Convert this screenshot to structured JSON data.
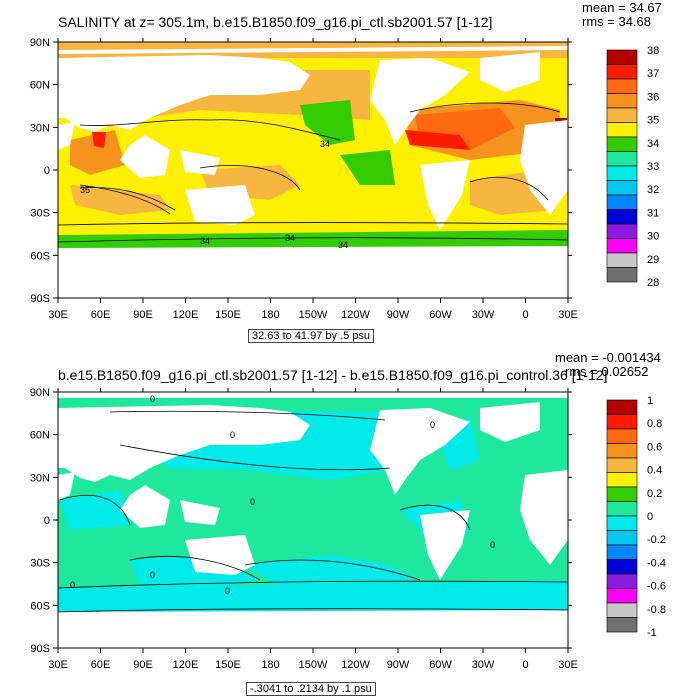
{
  "top": {
    "title": "SALINITY at z= 305.1m, b.e15.B1850.f09_g16.pi_ctl.sb2001.57 [1-12]",
    "mean": "mean = 34.67",
    "rms": "rms = 34.68",
    "contour_info": "32.63 to 41.97 by .5 psu"
  },
  "bottom": {
    "title": "b.e15.B1850.f09_g16.pi_ctl.sb2001.57 [1-12] - b.e15.B1850.f09_g16.pi_control.36 [1-12]",
    "mean": "mean = -0.001434",
    "rms": "rms = 0.02652",
    "contour_info": "-.3041 to .2134 by .1 psu"
  },
  "chart_data": [
    {
      "type": "heatmap",
      "title": "SALINITY at z= 305.1m, b.e15.B1850.f09_g16.pi_ctl.sb2001.57 [1-12]",
      "x_ticks": [
        "30E",
        "60E",
        "90E",
        "120E",
        "150E",
        "180",
        "150W",
        "120W",
        "90W",
        "60W",
        "30W",
        "0",
        "30E"
      ],
      "y_ticks": [
        "90N",
        "60N",
        "30N",
        "0",
        "30S",
        "60S",
        "90S"
      ],
      "x_range": [
        30,
        390
      ],
      "y_range": [
        -90,
        90
      ],
      "colorbar_labels": [
        "38",
        "37",
        "36",
        "35",
        "34",
        "33",
        "32",
        "31",
        "30",
        "29",
        "28"
      ],
      "colorbar_colors": [
        "#b40000",
        "#ff1a00",
        "#ff6a10",
        "#f6921e",
        "#f6b640",
        "#ffef00",
        "#33cc00",
        "#1ee89e",
        "#00eaea",
        "#00c7f0",
        "#0086ff",
        "#0000d8",
        "#8a1ce0",
        "#ff00ff",
        "#c8c8c8",
        "#707070"
      ],
      "contour_labels": [
        "34",
        "35",
        "34",
        "34",
        "34"
      ],
      "contour_info": "32.63 to 41.97 by .5 psu",
      "mean": 34.67,
      "rms": 34.68
    },
    {
      "type": "heatmap",
      "title": "b.e15.B1850.f09_g16.pi_ctl.sb2001.57 [1-12] - b.e15.B1850.f09_g16.pi_control.36 [1-12]",
      "x_ticks": [
        "30E",
        "60E",
        "90E",
        "120E",
        "150E",
        "180",
        "150W",
        "120W",
        "90W",
        "60W",
        "30W",
        "0",
        "30E"
      ],
      "y_ticks": [
        "90N",
        "60N",
        "30N",
        "0",
        "30S",
        "60S",
        "90S"
      ],
      "x_range": [
        30,
        390
      ],
      "y_range": [
        -90,
        90
      ],
      "colorbar_labels": [
        "1",
        "0.8",
        "0.6",
        "0.4",
        "0.2",
        "0",
        "-0.2",
        "-0.4",
        "-0.6",
        "-0.8",
        "-1"
      ],
      "colorbar_colors": [
        "#b40000",
        "#ff1a00",
        "#ff6a10",
        "#f6921e",
        "#f6b640",
        "#ffef00",
        "#33cc00",
        "#1ee89e",
        "#00eaea",
        "#00c7f0",
        "#0086ff",
        "#0000d8",
        "#8a1ce0",
        "#ff00ff",
        "#c8c8c8",
        "#707070"
      ],
      "contour_labels": [
        "0",
        "0",
        "0",
        "0",
        "0",
        "0",
        "0",
        "0"
      ],
      "contour_info": "-.3041 to .2134 by .1 psu",
      "mean": -0.001434,
      "rms": 0.02652
    }
  ]
}
